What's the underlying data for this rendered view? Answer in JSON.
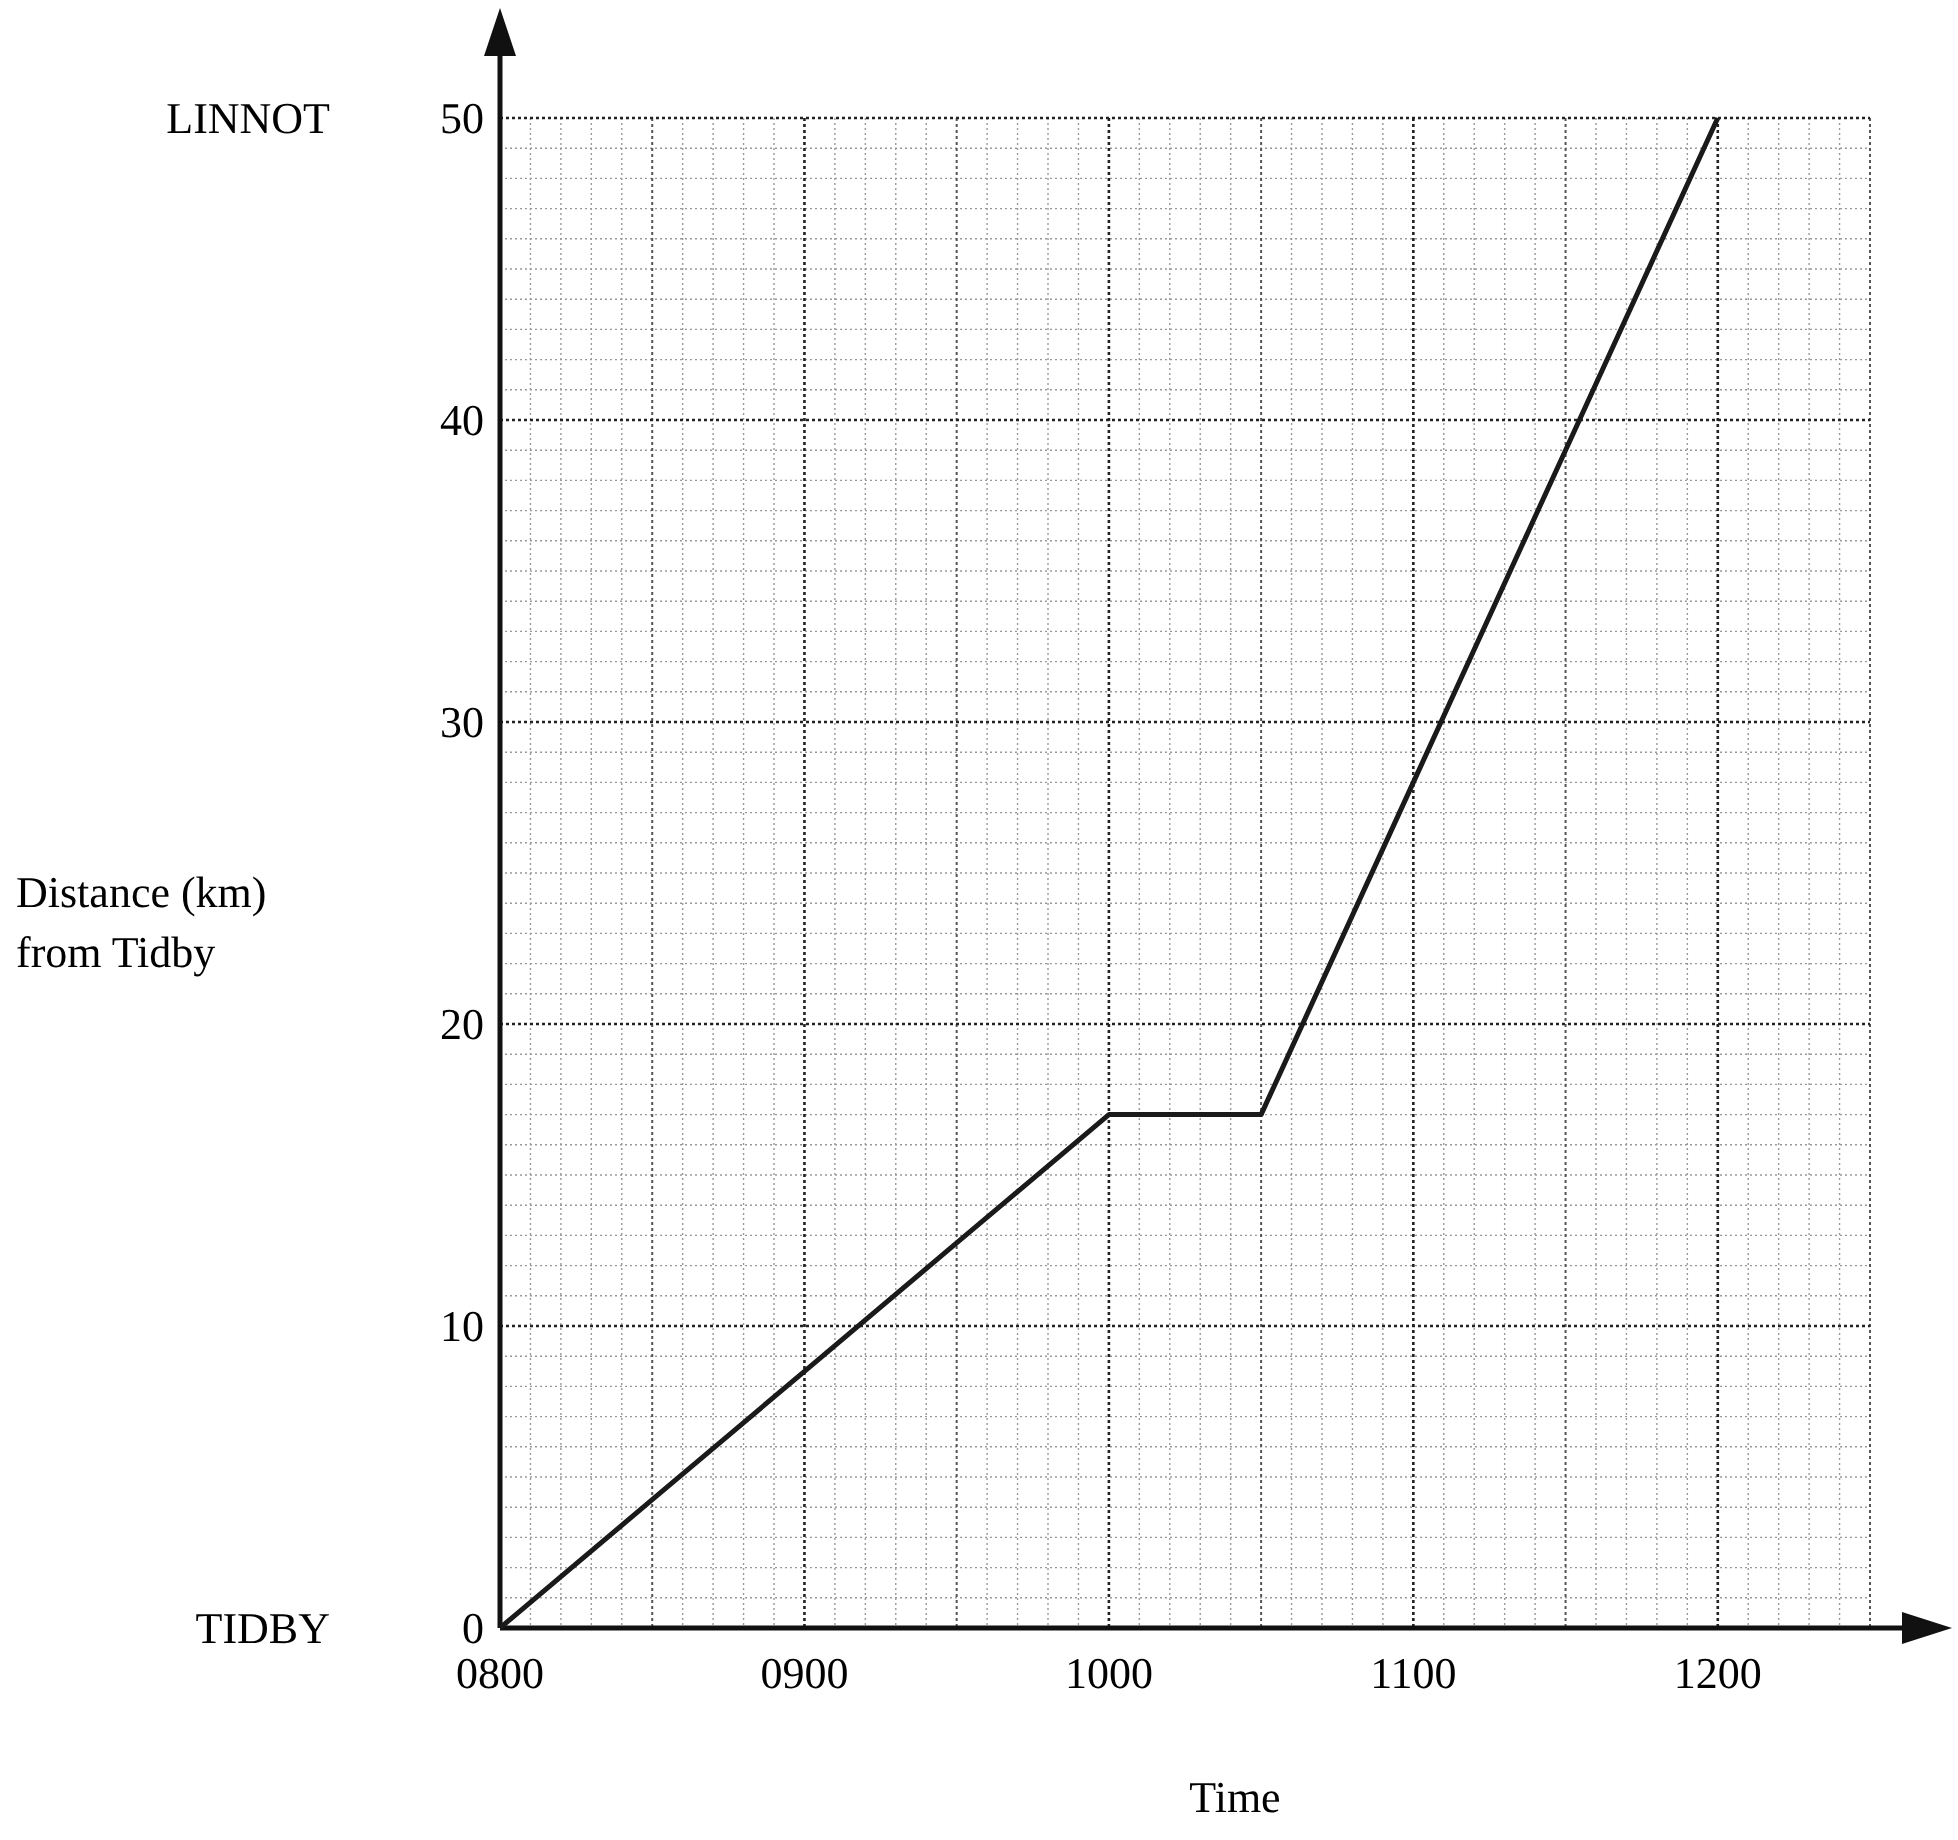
{
  "chart_data": {
    "type": "line",
    "xlabel": "Time",
    "ylabel": "Distance (km)\nfrom Tidby",
    "categories": [
      "0800",
      null,
      "0900",
      null,
      "1000",
      null,
      "1100",
      null,
      "1200",
      null
    ],
    "series": [
      {
        "color": "#1a1a1a",
        "values": [
          0,
          4.25,
          8.5,
          12.75,
          17,
          17,
          28,
          39,
          50,
          null
        ]
      }
    ],
    "ylim": [
      0,
      50
    ],
    "yticks": [
      0,
      10,
      20,
      30,
      40,
      50
    ],
    "grid": true,
    "line_style": "solid",
    "annotations": [
      "LINNOT",
      "TIDBY"
    ]
  }
}
